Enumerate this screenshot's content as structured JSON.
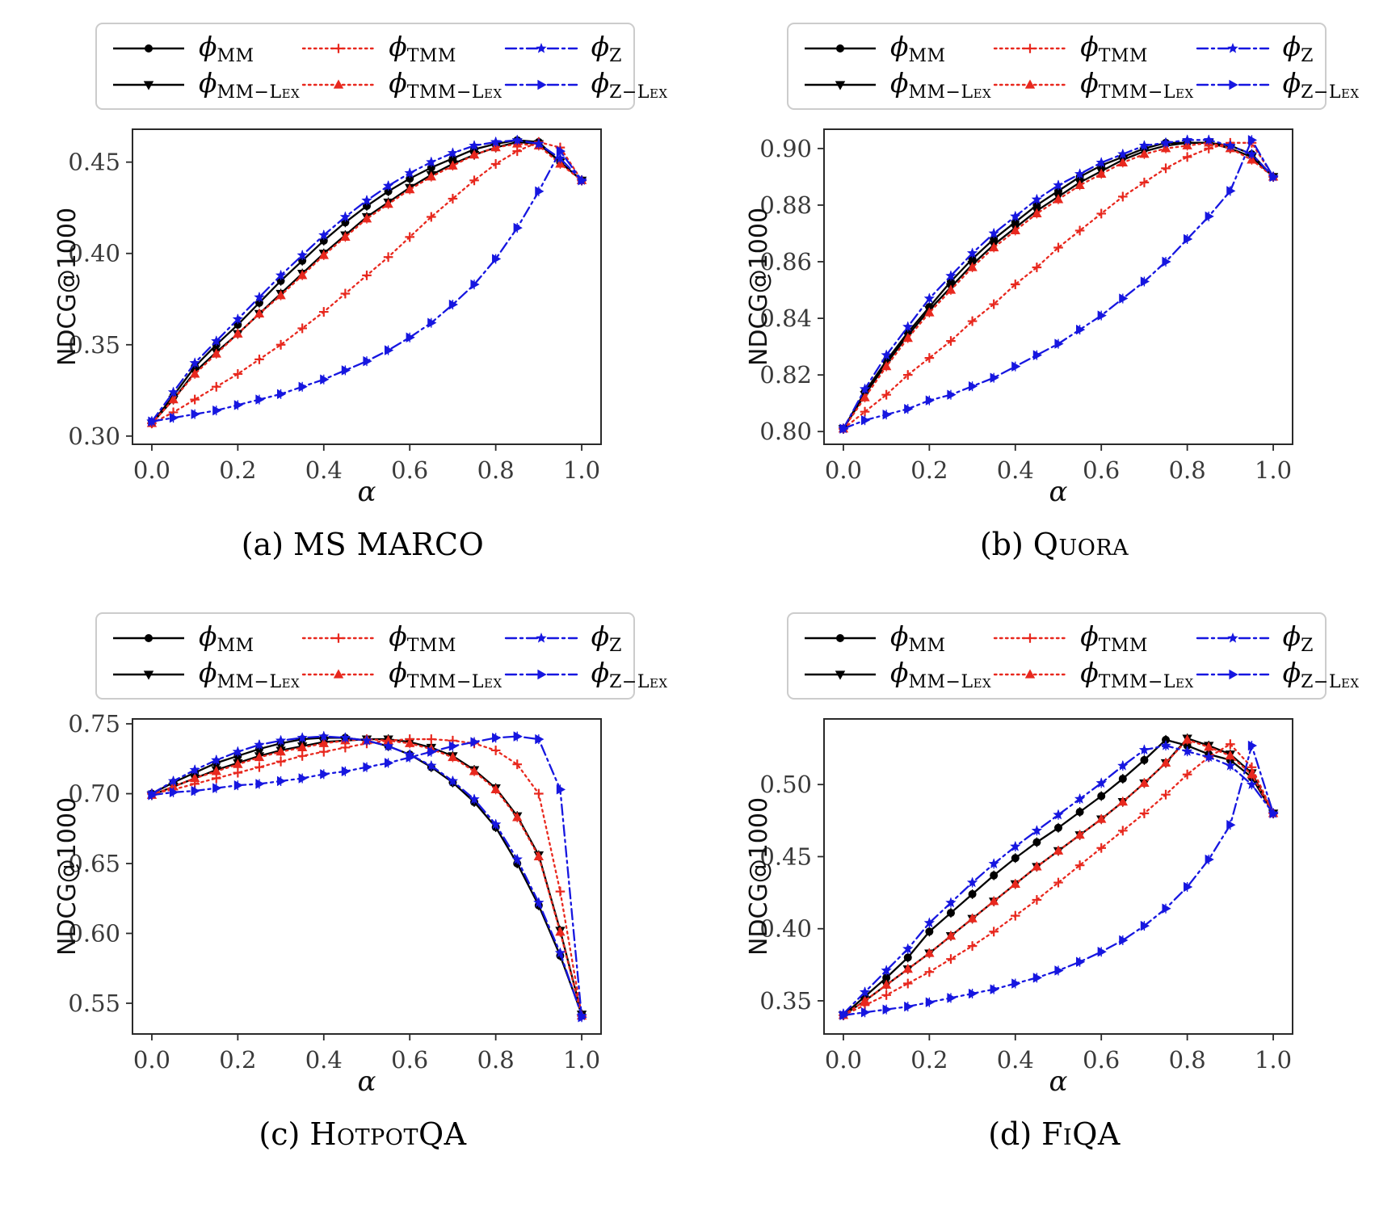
{
  "figure": {
    "legend": {
      "phi": "ϕ",
      "items": [
        {
          "id": "mm",
          "sub": "MM"
        },
        {
          "id": "tmm",
          "sub": "TMM"
        },
        {
          "id": "z",
          "sub": "Z"
        },
        {
          "id": "mm_lex",
          "sub": "MM−Lex"
        },
        {
          "id": "tmm_lex",
          "sub": "TMM−Lex"
        },
        {
          "id": "z_lex",
          "sub": "Z−Lex"
        }
      ]
    },
    "series_styles": {
      "mm": {
        "color": "#000000",
        "line": "solid",
        "marker": "circle"
      },
      "mm_lex": {
        "color": "#000000",
        "line": "solid",
        "marker": "tri_down"
      },
      "tmm": {
        "color": "#e8281e",
        "line": "dotted",
        "marker": "plus"
      },
      "tmm_lex": {
        "color": "#e8281e",
        "line": "dotted",
        "marker": "tri_up"
      },
      "z": {
        "color": "#1616e0",
        "line": "dashdot",
        "marker": "star"
      },
      "z_lex": {
        "color": "#1616e0",
        "line": "dashdot",
        "marker": "tri_right"
      }
    }
  },
  "chart_data": [
    {
      "type": "line",
      "caption_prefix": "(a)",
      "caption_name": "MS MARCO",
      "xlabel": "α",
      "ylabel": "NDCG@1000",
      "xlim": [
        -0.045,
        1.045
      ],
      "ylim": [
        0.2955,
        0.468
      ],
      "xticks": [
        0.0,
        0.2,
        0.4,
        0.6,
        0.8,
        1.0
      ],
      "xtick_labels": [
        "0.0",
        "0.2",
        "0.4",
        "0.6",
        "0.8",
        "1.0"
      ],
      "yticks": [
        0.3,
        0.35,
        0.4,
        0.45
      ],
      "ytick_labels": [
        "0.30",
        "0.35",
        "0.40",
        "0.45"
      ],
      "x": [
        0.0,
        0.05,
        0.1,
        0.15,
        0.2,
        0.25,
        0.3,
        0.35,
        0.4,
        0.45,
        0.5,
        0.55,
        0.6,
        0.65,
        0.7,
        0.75,
        0.8,
        0.85,
        0.9,
        0.95,
        1.0
      ],
      "series": [
        {
          "id": "mm",
          "name": "phi_MM",
          "values": [
            0.307,
            0.322,
            0.338,
            0.35,
            0.361,
            0.373,
            0.385,
            0.396,
            0.407,
            0.417,
            0.426,
            0.434,
            0.441,
            0.447,
            0.452,
            0.457,
            0.46,
            0.462,
            0.461,
            0.45,
            0.44
          ]
        },
        {
          "id": "mm_lex",
          "name": "phi_MM-Lex",
          "values": [
            0.307,
            0.32,
            0.335,
            0.346,
            0.356,
            0.367,
            0.378,
            0.389,
            0.4,
            0.41,
            0.42,
            0.428,
            0.436,
            0.443,
            0.449,
            0.454,
            0.458,
            0.461,
            0.46,
            0.45,
            0.44
          ]
        },
        {
          "id": "tmm",
          "name": "phi_TMM",
          "values": [
            0.307,
            0.313,
            0.32,
            0.327,
            0.334,
            0.342,
            0.35,
            0.359,
            0.368,
            0.378,
            0.388,
            0.398,
            0.409,
            0.42,
            0.43,
            0.44,
            0.449,
            0.456,
            0.461,
            0.458,
            0.44
          ]
        },
        {
          "id": "tmm_lex",
          "name": "phi_TMM-Lex",
          "values": [
            0.307,
            0.32,
            0.334,
            0.345,
            0.356,
            0.367,
            0.377,
            0.388,
            0.399,
            0.409,
            0.419,
            0.427,
            0.435,
            0.442,
            0.448,
            0.454,
            0.458,
            0.46,
            0.459,
            0.449,
            0.44
          ]
        },
        {
          "id": "z",
          "name": "phi_Z",
          "values": [
            0.308,
            0.324,
            0.34,
            0.352,
            0.364,
            0.376,
            0.388,
            0.399,
            0.41,
            0.42,
            0.429,
            0.437,
            0.444,
            0.45,
            0.455,
            0.459,
            0.461,
            0.462,
            0.46,
            0.452,
            0.44
          ]
        },
        {
          "id": "z_lex",
          "name": "phi_Z-Lex",
          "values": [
            0.308,
            0.31,
            0.312,
            0.314,
            0.317,
            0.32,
            0.323,
            0.327,
            0.331,
            0.336,
            0.341,
            0.347,
            0.354,
            0.362,
            0.372,
            0.383,
            0.397,
            0.414,
            0.434,
            0.456,
            0.44
          ]
        }
      ]
    },
    {
      "type": "line",
      "caption_prefix": "(b)",
      "caption_name": "Quora",
      "xlabel": "α",
      "ylabel": "NDCG@1000",
      "xlim": [
        -0.045,
        1.045
      ],
      "ylim": [
        0.7955,
        0.9068
      ],
      "xticks": [
        0.0,
        0.2,
        0.4,
        0.6,
        0.8,
        1.0
      ],
      "xtick_labels": [
        "0.0",
        "0.2",
        "0.4",
        "0.6",
        "0.8",
        "1.0"
      ],
      "yticks": [
        0.8,
        0.82,
        0.84,
        0.86,
        0.88,
        0.9
      ],
      "ytick_labels": [
        "0.80",
        "0.82",
        "0.84",
        "0.86",
        "0.88",
        "0.90"
      ],
      "x": [
        0.0,
        0.05,
        0.1,
        0.15,
        0.2,
        0.25,
        0.3,
        0.35,
        0.4,
        0.45,
        0.5,
        0.55,
        0.6,
        0.65,
        0.7,
        0.75,
        0.8,
        0.85,
        0.9,
        0.95,
        1.0
      ],
      "series": [
        {
          "id": "mm",
          "name": "phi_MM",
          "values": [
            0.801,
            0.814,
            0.825,
            0.835,
            0.844,
            0.853,
            0.861,
            0.868,
            0.874,
            0.88,
            0.885,
            0.89,
            0.894,
            0.897,
            0.9,
            0.902,
            0.902,
            0.902,
            0.901,
            0.898,
            0.89
          ]
        },
        {
          "id": "mm_lex",
          "name": "phi_MM-Lex",
          "values": [
            0.801,
            0.813,
            0.824,
            0.834,
            0.843,
            0.851,
            0.859,
            0.866,
            0.872,
            0.878,
            0.883,
            0.888,
            0.892,
            0.896,
            0.899,
            0.901,
            0.902,
            0.902,
            0.9,
            0.897,
            0.89
          ]
        },
        {
          "id": "tmm",
          "name": "phi_TMM",
          "values": [
            0.801,
            0.807,
            0.813,
            0.82,
            0.826,
            0.832,
            0.839,
            0.845,
            0.852,
            0.858,
            0.865,
            0.871,
            0.877,
            0.883,
            0.888,
            0.893,
            0.897,
            0.9,
            0.902,
            0.902,
            0.89
          ]
        },
        {
          "id": "tmm_lex",
          "name": "phi_TMM-Lex",
          "values": [
            0.801,
            0.812,
            0.823,
            0.833,
            0.842,
            0.85,
            0.858,
            0.865,
            0.871,
            0.877,
            0.882,
            0.887,
            0.891,
            0.895,
            0.898,
            0.9,
            0.901,
            0.902,
            0.9,
            0.896,
            0.89
          ]
        },
        {
          "id": "z",
          "name": "phi_Z",
          "values": [
            0.801,
            0.815,
            0.827,
            0.837,
            0.847,
            0.855,
            0.863,
            0.87,
            0.876,
            0.882,
            0.887,
            0.891,
            0.895,
            0.898,
            0.901,
            0.902,
            0.903,
            0.903,
            0.901,
            0.898,
            0.89
          ]
        },
        {
          "id": "z_lex",
          "name": "phi_Z-Lex",
          "values": [
            0.801,
            0.804,
            0.806,
            0.808,
            0.811,
            0.813,
            0.816,
            0.819,
            0.823,
            0.827,
            0.831,
            0.836,
            0.841,
            0.847,
            0.853,
            0.86,
            0.868,
            0.876,
            0.885,
            0.903,
            0.89
          ]
        }
      ]
    },
    {
      "type": "line",
      "caption_prefix": "(c)",
      "caption_name": "HotpotQA",
      "xlabel": "α",
      "ylabel": "NDCG@1000",
      "xlim": [
        -0.045,
        1.045
      ],
      "ylim": [
        0.528,
        0.7535
      ],
      "xticks": [
        0.0,
        0.2,
        0.4,
        0.6,
        0.8,
        1.0
      ],
      "xtick_labels": [
        "0.0",
        "0.2",
        "0.4",
        "0.6",
        "0.8",
        "1.0"
      ],
      "yticks": [
        0.55,
        0.6,
        0.65,
        0.7,
        0.75
      ],
      "ytick_labels": [
        "0.55",
        "0.60",
        "0.65",
        "0.70",
        "0.75"
      ],
      "x": [
        0.0,
        0.05,
        0.1,
        0.15,
        0.2,
        0.25,
        0.3,
        0.35,
        0.4,
        0.45,
        0.5,
        0.55,
        0.6,
        0.65,
        0.7,
        0.75,
        0.8,
        0.85,
        0.9,
        0.95,
        1.0
      ],
      "series": [
        {
          "id": "mm",
          "name": "phi_MM",
          "values": [
            0.7,
            0.708,
            0.715,
            0.722,
            0.727,
            0.732,
            0.736,
            0.739,
            0.74,
            0.74,
            0.738,
            0.734,
            0.728,
            0.719,
            0.708,
            0.694,
            0.676,
            0.65,
            0.62,
            0.584,
            0.542
          ]
        },
        {
          "id": "mm_lex",
          "name": "phi_MM-Lex",
          "values": [
            0.699,
            0.705,
            0.711,
            0.717,
            0.722,
            0.727,
            0.731,
            0.734,
            0.737,
            0.738,
            0.739,
            0.739,
            0.737,
            0.733,
            0.727,
            0.717,
            0.704,
            0.684,
            0.656,
            0.602,
            0.542
          ]
        },
        {
          "id": "tmm",
          "name": "phi_TMM",
          "values": [
            0.7,
            0.703,
            0.707,
            0.711,
            0.715,
            0.719,
            0.723,
            0.727,
            0.73,
            0.733,
            0.736,
            0.738,
            0.739,
            0.739,
            0.738,
            0.736,
            0.731,
            0.721,
            0.7,
            0.63,
            0.541
          ]
        },
        {
          "id": "tmm_lex",
          "name": "phi_TMM-Lex",
          "values": [
            0.699,
            0.705,
            0.711,
            0.716,
            0.721,
            0.726,
            0.73,
            0.733,
            0.736,
            0.738,
            0.739,
            0.738,
            0.736,
            0.732,
            0.726,
            0.716,
            0.703,
            0.683,
            0.655,
            0.601,
            0.541
          ]
        },
        {
          "id": "z",
          "name": "phi_Z",
          "values": [
            0.7,
            0.709,
            0.717,
            0.724,
            0.73,
            0.735,
            0.738,
            0.74,
            0.741,
            0.74,
            0.738,
            0.734,
            0.728,
            0.72,
            0.709,
            0.696,
            0.678,
            0.653,
            0.622,
            0.586,
            0.541
          ]
        },
        {
          "id": "z_lex",
          "name": "phi_Z-Lex",
          "values": [
            0.699,
            0.701,
            0.702,
            0.704,
            0.706,
            0.707,
            0.709,
            0.711,
            0.714,
            0.716,
            0.719,
            0.722,
            0.726,
            0.73,
            0.734,
            0.737,
            0.74,
            0.741,
            0.739,
            0.703,
            0.54
          ]
        }
      ]
    },
    {
      "type": "line",
      "caption_prefix": "(d)",
      "caption_name": "FiQA",
      "xlabel": "α",
      "ylabel": "NDCG@1000",
      "xlim": [
        -0.045,
        1.045
      ],
      "ylim": [
        0.327,
        0.5455
      ],
      "xticks": [
        0.0,
        0.2,
        0.4,
        0.6,
        0.8,
        1.0
      ],
      "xtick_labels": [
        "0.0",
        "0.2",
        "0.4",
        "0.6",
        "0.8",
        "1.0"
      ],
      "yticks": [
        0.35,
        0.4,
        0.45,
        0.5
      ],
      "ytick_labels": [
        "0.35",
        "0.40",
        "0.45",
        "0.50"
      ],
      "x": [
        0.0,
        0.05,
        0.1,
        0.15,
        0.2,
        0.25,
        0.3,
        0.35,
        0.4,
        0.45,
        0.5,
        0.55,
        0.6,
        0.65,
        0.7,
        0.75,
        0.8,
        0.85,
        0.9,
        0.95,
        1.0
      ],
      "series": [
        {
          "id": "mm",
          "name": "phi_MM",
          "values": [
            0.34,
            0.353,
            0.366,
            0.38,
            0.398,
            0.411,
            0.424,
            0.437,
            0.449,
            0.46,
            0.47,
            0.481,
            0.492,
            0.504,
            0.517,
            0.531,
            0.527,
            0.521,
            0.517,
            0.505,
            0.48
          ]
        },
        {
          "id": "mm_lex",
          "name": "phi_MM-Lex",
          "values": [
            0.34,
            0.35,
            0.361,
            0.372,
            0.383,
            0.395,
            0.407,
            0.419,
            0.431,
            0.443,
            0.454,
            0.465,
            0.476,
            0.488,
            0.501,
            0.515,
            0.532,
            0.527,
            0.521,
            0.508,
            0.48
          ]
        },
        {
          "id": "tmm",
          "name": "phi_TMM",
          "values": [
            0.34,
            0.347,
            0.354,
            0.362,
            0.37,
            0.379,
            0.388,
            0.398,
            0.409,
            0.42,
            0.432,
            0.444,
            0.456,
            0.468,
            0.48,
            0.493,
            0.507,
            0.519,
            0.528,
            0.512,
            0.48
          ]
        },
        {
          "id": "tmm_lex",
          "name": "phi_TMM-Lex",
          "values": [
            0.34,
            0.35,
            0.361,
            0.372,
            0.383,
            0.395,
            0.407,
            0.419,
            0.431,
            0.443,
            0.454,
            0.465,
            0.476,
            0.488,
            0.501,
            0.515,
            0.531,
            0.526,
            0.52,
            0.507,
            0.48
          ]
        },
        {
          "id": "z",
          "name": "phi_Z",
          "values": [
            0.341,
            0.356,
            0.371,
            0.386,
            0.404,
            0.418,
            0.432,
            0.445,
            0.457,
            0.468,
            0.479,
            0.49,
            0.501,
            0.513,
            0.524,
            0.527,
            0.523,
            0.519,
            0.513,
            0.5,
            0.48
          ]
        },
        {
          "id": "z_lex",
          "name": "phi_Z-Lex",
          "values": [
            0.34,
            0.342,
            0.344,
            0.346,
            0.349,
            0.352,
            0.355,
            0.358,
            0.362,
            0.366,
            0.371,
            0.377,
            0.384,
            0.392,
            0.402,
            0.414,
            0.429,
            0.448,
            0.472,
            0.527,
            0.48
          ]
        }
      ]
    }
  ]
}
